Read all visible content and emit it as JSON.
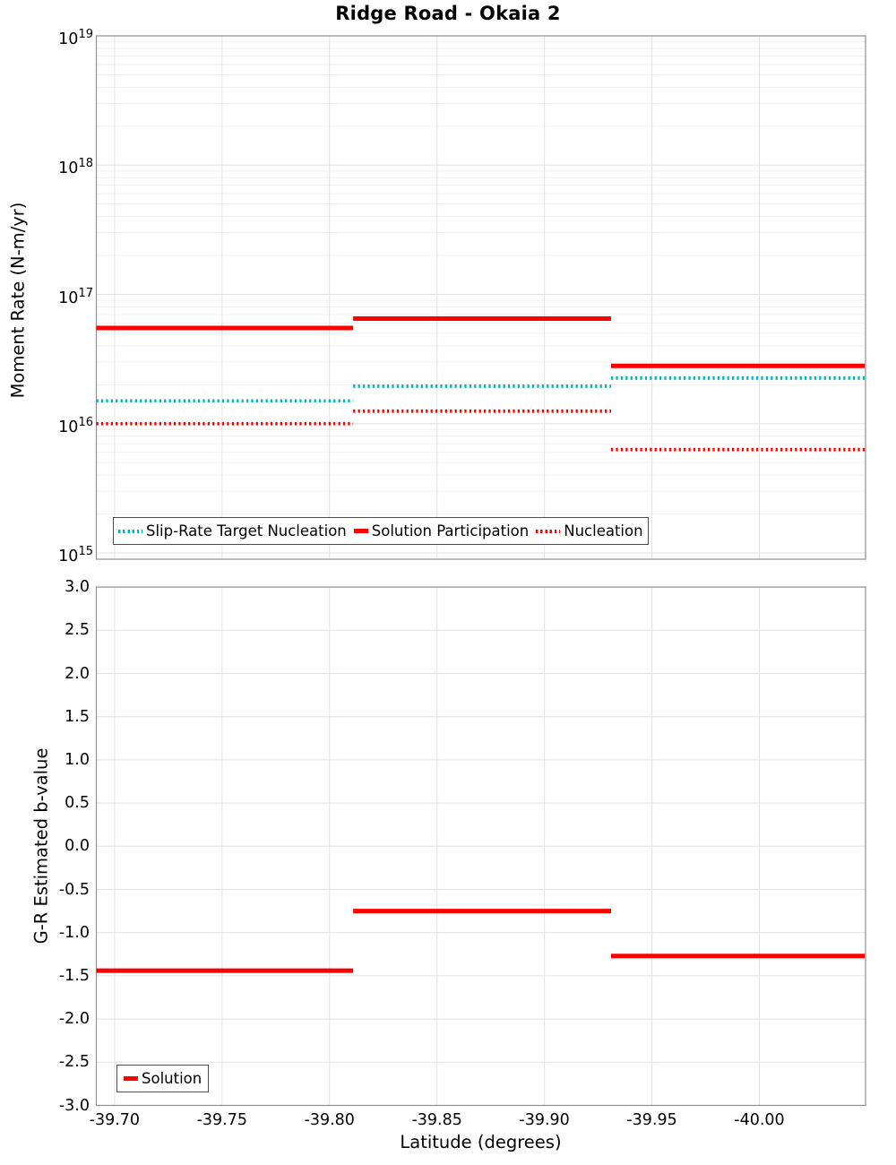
{
  "title": "Ridge Road - Okaia 2",
  "chart_data": [
    {
      "type": "line",
      "title": "Ridge Road - Okaia 2",
      "ylabel": "Moment Rate (N-m/yr)",
      "yscale": "log",
      "ylim": [
        1000000000000000.0,
        1e+19
      ],
      "ytick_exponents": [
        19,
        18,
        17,
        16,
        15
      ],
      "xlim": [
        -39.6915,
        -40.0494
      ],
      "grid": true,
      "legend_position": "lower left",
      "legend": [
        "Slip-Rate Target Nucleation",
        "Solution Participation",
        "Nucleation"
      ],
      "segment_bounds_latitude": [
        -39.691,
        -39.811,
        -39.931,
        -40.049
      ],
      "series": [
        {
          "name": "Slip-Rate Target Nucleation",
          "color": "#00b8ba",
          "line_style": "dotted",
          "values": [
            1.5e+16,
            1.95e+16,
            2.25e+16
          ]
        },
        {
          "name": "Solution Participation",
          "color": "#ff0000",
          "line_style": "solid",
          "values": [
            5.5e+16,
            6.5e+16,
            2.8e+16
          ]
        },
        {
          "name": "Nucleation",
          "color": "#ff0000",
          "line_style": "dotted",
          "values": [
            1e+16,
            1.25e+16,
            6300000000000000.0
          ]
        }
      ]
    },
    {
      "type": "line",
      "ylabel": "G-R Estimated b-value",
      "xlabel": "Latitude (degrees)",
      "ylim": [
        -3.0,
        3.0
      ],
      "ytick_labels": [
        "3.0",
        "2.5",
        "2.0",
        "1.5",
        "1.0",
        "0.5",
        "0.0",
        "-0.5",
        "-1.0",
        "-1.5",
        "-2.0",
        "-2.5",
        "-3.0"
      ],
      "xticks": [
        {
          "value": -39.7,
          "label": "-39.70"
        },
        {
          "value": -39.75,
          "label": "-39.75"
        },
        {
          "value": -39.8,
          "label": "-39.80"
        },
        {
          "value": -39.85,
          "label": "-39.85"
        },
        {
          "value": -39.9,
          "label": "-39.90"
        },
        {
          "value": -39.95,
          "label": "-39.95"
        },
        {
          "value": -40.0,
          "label": "-40.00"
        }
      ],
      "xlim": [
        -39.6915,
        -40.0494
      ],
      "grid": true,
      "legend_position": "lower left",
      "legend": [
        "Solution"
      ],
      "segment_bounds_latitude": [
        -39.691,
        -39.811,
        -39.931,
        -40.049
      ],
      "series": [
        {
          "name": "Solution",
          "color": "#ff0000",
          "line_style": "solid",
          "values": [
            -1.44,
            -0.75,
            -1.27
          ]
        }
      ]
    }
  ]
}
